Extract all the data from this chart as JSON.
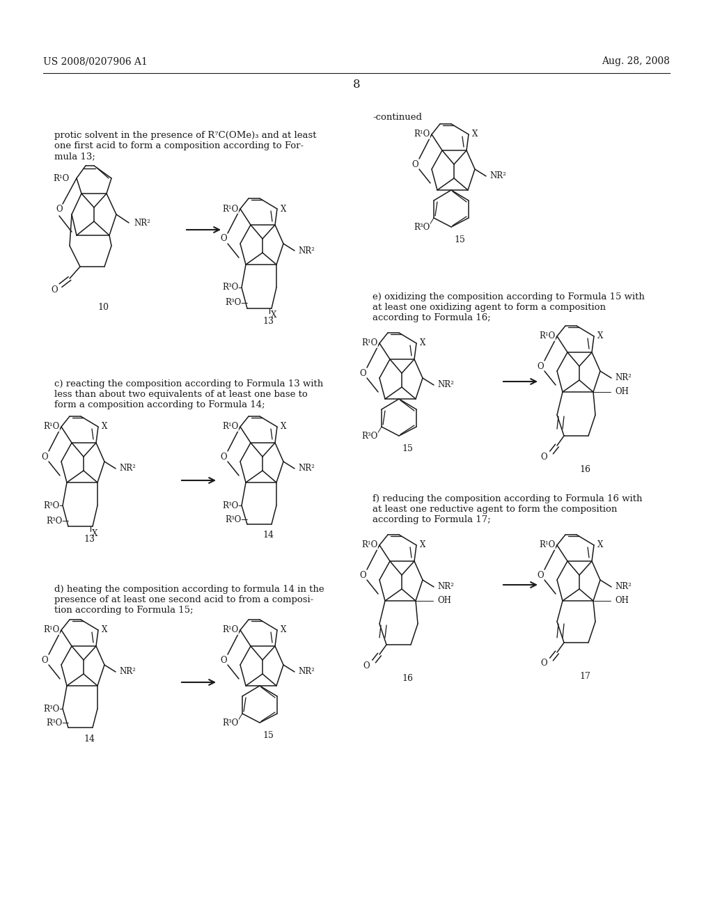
{
  "background_color": "#ffffff",
  "header_left": "US 2008/0207906 A1",
  "header_right": "Aug. 28, 2008",
  "page_number": "8",
  "continued_label": "-continued",
  "text_color": "#1a1a1a",
  "line_color": "#1a1a1a"
}
